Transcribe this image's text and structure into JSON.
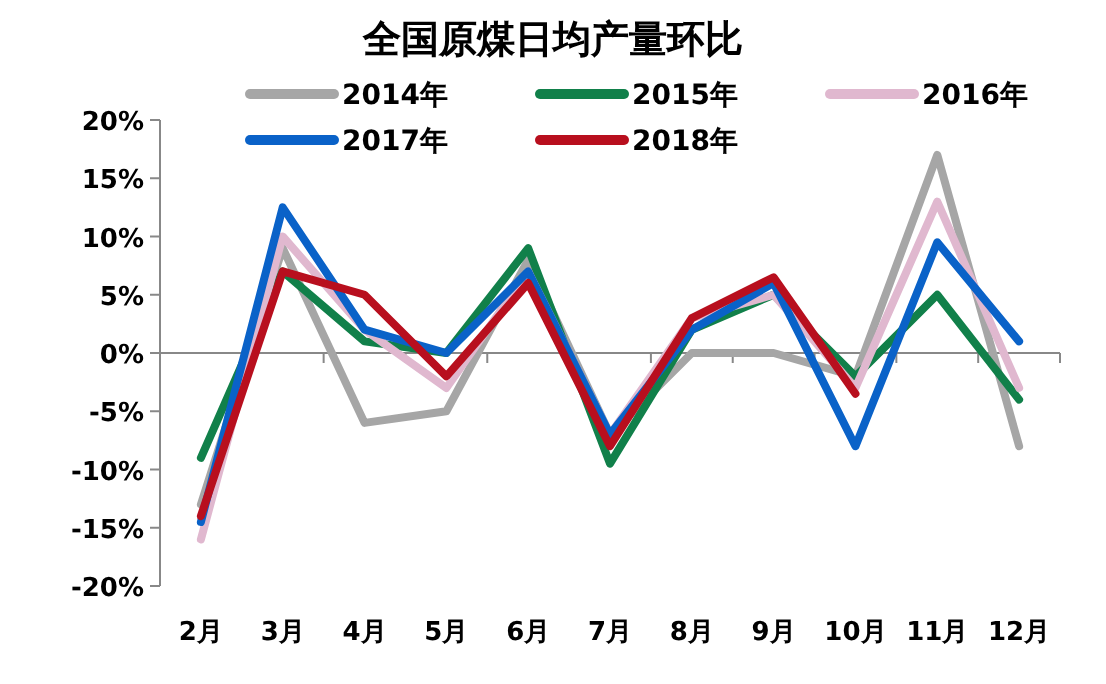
{
  "chart_data": {
    "type": "line",
    "title": "全国原煤日均产量环比",
    "categories": [
      "2月",
      "3月",
      "4月",
      "5月",
      "6月",
      "7月",
      "8月",
      "9月",
      "10月",
      "11月",
      "12月"
    ],
    "series": [
      {
        "name": "2014年",
        "color": "#a6a6a6",
        "values": [
          -13,
          9,
          -6,
          -5,
          8,
          -7,
          0,
          0,
          -2,
          17,
          -8
        ]
      },
      {
        "name": "2015年",
        "color": "#11804a",
        "values": [
          -9,
          7,
          1,
          0,
          9,
          -9.5,
          2,
          5,
          -2,
          5,
          -4
        ]
      },
      {
        "name": "2016年",
        "color": "#e0b8cf",
        "values": [
          -16,
          10,
          2,
          -3,
          7,
          -7,
          3,
          5,
          -3,
          13,
          -3
        ]
      },
      {
        "name": "2017年",
        "color": "#0a62c8",
        "values": [
          -14.5,
          12.5,
          2,
          0,
          7,
          -7,
          2,
          6,
          -8,
          9.5,
          1
        ]
      },
      {
        "name": "2018年",
        "color": "#b80f1e",
        "values": [
          -14,
          7,
          5,
          -2,
          6,
          -8,
          3,
          6.5,
          -3.5,
          null,
          null
        ]
      }
    ],
    "ylim": [
      -20,
      20
    ],
    "yticks": [
      {
        "value": -20,
        "label": "-20%"
      },
      {
        "value": -15,
        "label": "-15%"
      },
      {
        "value": -10,
        "label": "-10%"
      },
      {
        "value": -5,
        "label": "-5%"
      },
      {
        "value": 0,
        "label": "0%"
      },
      {
        "value": 5,
        "label": "5%"
      },
      {
        "value": 10,
        "label": "10%"
      },
      {
        "value": 15,
        "label": "15%"
      },
      {
        "value": 20,
        "label": "20%"
      }
    ],
    "legend": "top",
    "marker": "none",
    "line_style": "solid"
  }
}
